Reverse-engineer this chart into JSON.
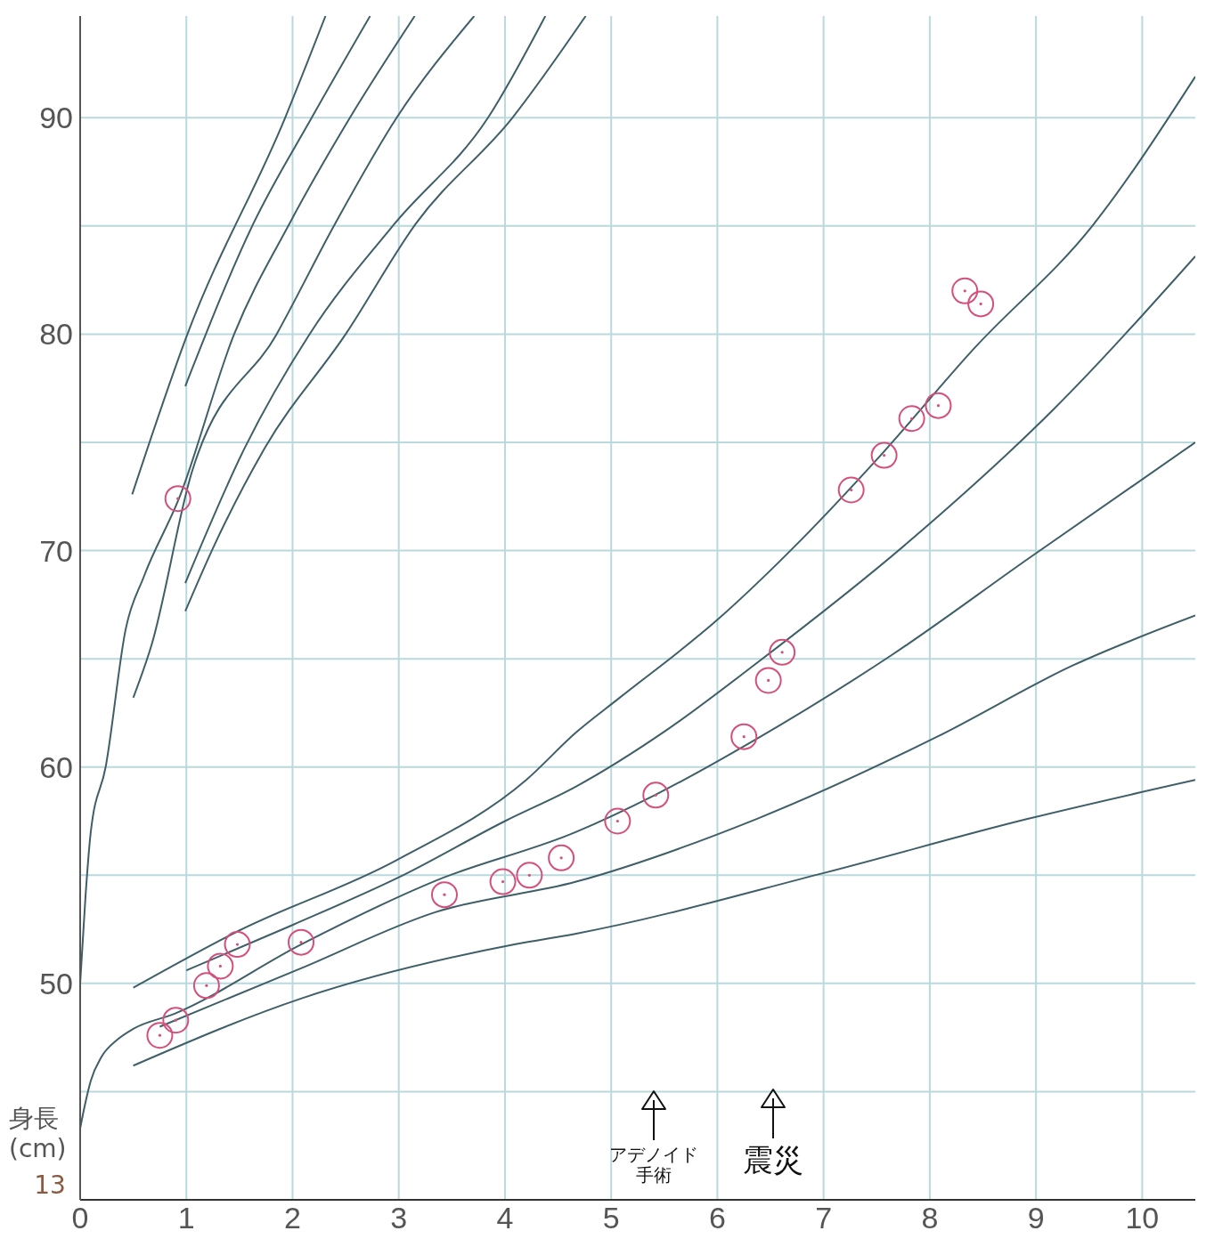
{
  "chart_data": {
    "type": "line",
    "ylabel": "身長 (cm)",
    "xlim": [
      0,
      10.5
    ],
    "ylim": [
      40,
      94.7
    ],
    "xticks": [
      0,
      1,
      2,
      3,
      4,
      5,
      6,
      7,
      8,
      9,
      10
    ],
    "yticks": [
      {
        "value": 40,
        "label": null
      },
      {
        "value": 45,
        "label": null
      },
      50,
      {
        "value": 55,
        "label": null
      },
      60,
      {
        "value": 65,
        "label": null
      },
      70,
      {
        "value": 75,
        "label": null
      },
      80,
      {
        "value": 85,
        "label": null
      },
      90
    ],
    "grid": true,
    "line_style": "solid",
    "series": [
      {
        "color": "#3f5f68",
        "x": [
          0.5,
          1.48,
          2.98,
          4.2,
          4.67,
          5.08,
          6.0,
          6.79,
          7.5,
          8.41,
          9.53,
          10.5
        ],
        "values": [
          49.8,
          52.4,
          55.7,
          59.4,
          61.6,
          63.2,
          66.8,
          70.5,
          74.2,
          79.3,
          85,
          91.9
        ]
      },
      {
        "color": "#3f5f68",
        "x": [
          1.0,
          2,
          3,
          4,
          4.67,
          5.52,
          6.37,
          7.8,
          9.16,
          10.5
        ],
        "values": [
          50.6,
          52.7,
          54.9,
          57.5,
          59.1,
          61.7,
          64.8,
          70.4,
          76.5,
          83.6
        ]
      },
      {
        "color": "#3f5f68",
        "x": [
          0,
          0.05,
          0.1,
          0.2,
          0.35,
          0.5,
          0.89,
          2.08,
          3.35,
          4.67,
          5.41,
          6.37,
          7.65,
          8.92,
          10.5
        ],
        "values": [
          43.3,
          44.5,
          45.5,
          46.6,
          47.4,
          47.9,
          48.6,
          51.8,
          54.75,
          57.0,
          58.7,
          61.3,
          65.2,
          69.6,
          75.0
        ]
      },
      {
        "color": "#3f5f68",
        "x": [
          0.75,
          2.08,
          3.35,
          4.67,
          6.37,
          8.07,
          9.35,
          10.5
        ],
        "values": [
          48.0,
          50.7,
          53.3,
          54.7,
          57.6,
          61.4,
          64.7,
          67.0
        ]
      },
      {
        "color": "#3f5f68",
        "x": [
          0.5,
          2.08,
          4.09,
          4.67,
          7.0,
          8.92,
          10.5
        ],
        "values": [
          46.2,
          49.3,
          51.8,
          52.3,
          55.1,
          57.6,
          59.4
        ]
      },
      {
        "color": "#3f5f68",
        "x": [
          0,
          0.05,
          0.1,
          0.24,
          0.43,
          0.6,
          0.93,
          1.45,
          1.97,
          2.54,
          3.15
        ],
        "values": [
          50,
          54,
          57,
          60,
          66.4,
          68.8,
          72.4,
          80,
          85.1,
          90,
          94.7
        ]
      },
      {
        "color": "#3f5f68",
        "x": [
          0.49,
          1.01,
          1.93,
          2.31
        ],
        "values": [
          72.6,
          80,
          90,
          94.7
        ]
      },
      {
        "color": "#3f5f68",
        "x": [
          0.99,
          1.63,
          2.18,
          2.73
        ],
        "values": [
          77.6,
          85.1,
          90,
          94.7
        ]
      },
      {
        "color": "#3f5f68",
        "x": [
          0.5,
          0.67,
          1.05,
          1.85,
          2.4,
          2.98,
          3.71
        ],
        "values": [
          63.2,
          65.6,
          73.6,
          80,
          85.1,
          90,
          94.7
        ]
      },
      {
        "color": "#3f5f68",
        "x": [
          0.99,
          1.55,
          2.16,
          2.96,
          3.84,
          4.38
        ],
        "values": [
          68.5,
          74.75,
          80,
          85.1,
          90,
          94.7
        ]
      },
      {
        "color": "#3f5f68",
        "x": [
          0.99,
          1.24,
          1.74,
          2.5,
          3.16,
          4.07,
          4.76
        ],
        "values": [
          67.2,
          70,
          74.75,
          80,
          85.1,
          90,
          94.7
        ]
      },
      {
        "type": "scatter",
        "color": "#d4507c",
        "marker": "circle",
        "x": [
          0.92,
          0.75,
          0.9,
          1.19,
          1.32,
          1.48,
          2.08,
          3.43,
          3.98,
          4.23,
          4.53,
          5.06,
          5.42,
          6.25,
          6.48,
          6.61,
          7.26,
          7.57,
          7.83,
          8.08,
          8.33,
          8.48
        ],
        "values": [
          72.4,
          47.6,
          48.3,
          49.9,
          50.8,
          51.8,
          51.9,
          54.1,
          54.7,
          55.0,
          55.8,
          57.5,
          58.7,
          61.4,
          64.0,
          65.3,
          72.8,
          74.4,
          76.1,
          76.7,
          82.0,
          81.4
        ]
      }
    ],
    "annotations": [
      "アデノイド手術",
      "震災",
      "13"
    ]
  }
}
